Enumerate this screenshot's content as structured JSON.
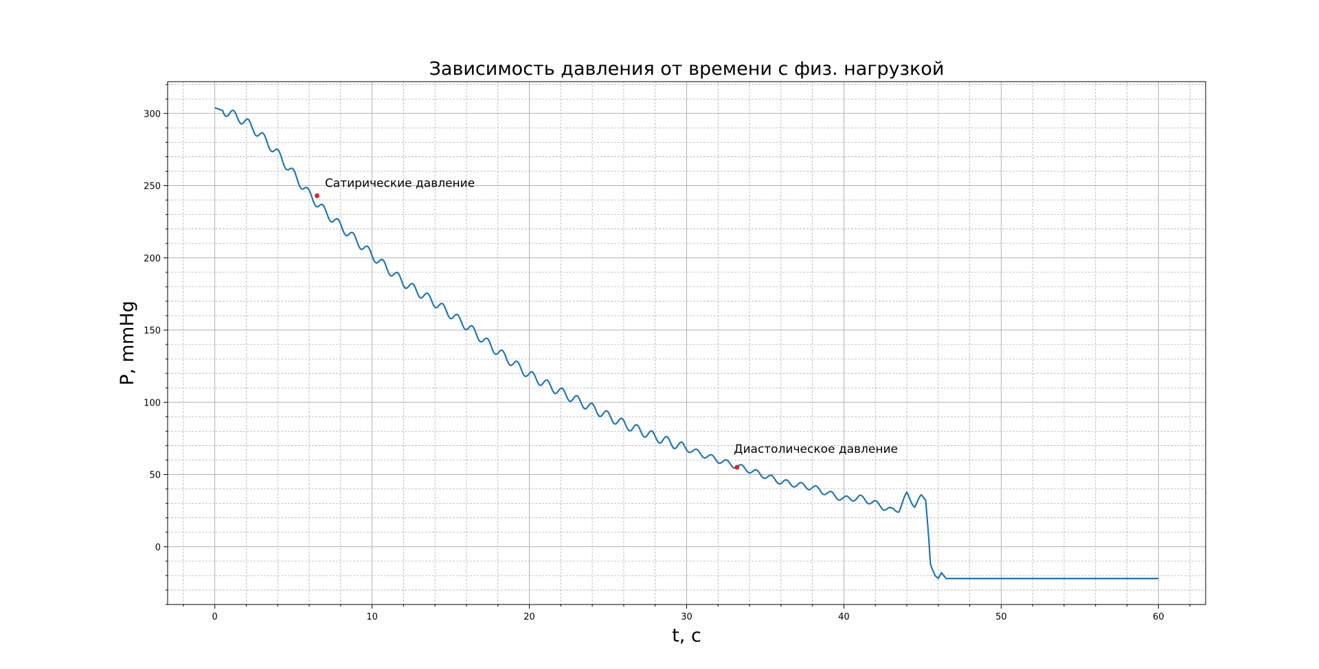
{
  "chart_data": {
    "type": "line",
    "title": "Зависимость давления от времени с физ. нагрузкой",
    "xlabel": "t, с",
    "ylabel": "P, mmHg",
    "xlim": [
      -3,
      63
    ],
    "ylim": [
      -40,
      322
    ],
    "xticks": [
      0,
      10,
      20,
      30,
      40,
      50,
      60
    ],
    "yticks": [
      0,
      50,
      100,
      150,
      200,
      250,
      300
    ],
    "xticks_minor_step": 2,
    "yticks_minor_step": 10,
    "grid": true,
    "line_color": "#1f77b4",
    "marker_color": "#d62728",
    "series": [
      {
        "x": [
          0,
          0.5,
          1,
          2,
          3,
          4,
          5,
          6,
          7,
          8,
          10,
          12,
          14,
          16,
          18,
          20,
          22,
          24,
          26,
          28,
          30,
          32,
          34,
          36,
          38,
          40,
          41,
          42,
          43,
          43.5,
          44,
          44.5,
          45,
          45.2,
          45.4,
          45.5,
          45.6,
          45.8,
          46,
          46.2,
          46.5,
          47,
          48,
          50,
          55,
          60
        ],
        "y": [
          304,
          302,
          300,
          294,
          284,
          272,
          258,
          244,
          232,
          222,
          202,
          183,
          169,
          153,
          135,
          119,
          107,
          96,
          85,
          76,
          68,
          60,
          53,
          45,
          41,
          33,
          34,
          30,
          25,
          26,
          36,
          29,
          35,
          32,
          5,
          -12,
          -15,
          -20,
          -22,
          -18,
          -22,
          -22,
          -22,
          -22,
          -22,
          -22
        ]
      }
    ],
    "annotations": [
      {
        "text": "Сатирические давление",
        "point": [
          6.5,
          243
        ],
        "text_at": [
          7,
          249
        ]
      },
      {
        "text": "Диастолическое давление",
        "point": [
          33.2,
          55
        ],
        "text_at": [
          33,
          65
        ]
      }
    ]
  }
}
